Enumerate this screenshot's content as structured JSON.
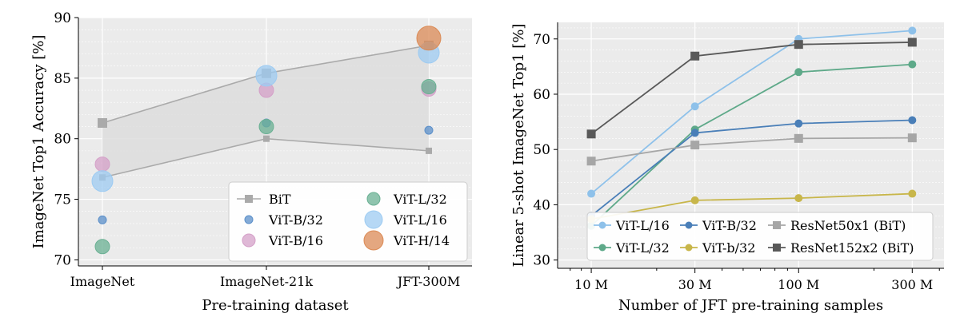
{
  "chart_data": [
    {
      "type": "scatter",
      "xlabel": "Pre-training dataset",
      "ylabel": "ImageNet Top1 Accuracy [%]",
      "categories": [
        "ImageNet",
        "ImageNet-21k",
        "JFT-300M"
      ],
      "ylim": [
        69.5,
        90
      ],
      "yticks": [
        70,
        75,
        80,
        85,
        90
      ],
      "grid": true,
      "legend_placement": "bottom-right",
      "bit_band": {
        "name": "BiT",
        "upper": [
          81.3,
          85.4,
          87.7
        ],
        "lower": [
          76.8,
          80.0,
          79.0
        ],
        "color": "#aaaaaa"
      },
      "series": [
        {
          "name": "ViT-B/32",
          "values": [
            73.3,
            81.3,
            80.7
          ],
          "color": "#5b8fc9",
          "size": "small"
        },
        {
          "name": "ViT-B/16",
          "values": [
            77.9,
            84.0,
            84.1
          ],
          "color": "#d4a0c8",
          "size": "medium"
        },
        {
          "name": "ViT-L/32",
          "values": [
            71.1,
            81.0,
            84.3
          ],
          "color": "#6ab093",
          "size": "medium"
        },
        {
          "name": "ViT-L/16",
          "values": [
            76.5,
            85.2,
            87.1
          ],
          "color": "#9dcbf2",
          "size": "large"
        },
        {
          "name": "ViT-H/14",
          "values": [
            null,
            null,
            88.3
          ],
          "color": "#db8a55",
          "size": "xlarge"
        }
      ]
    },
    {
      "type": "line",
      "xlabel": "Number of JFT pre-training samples",
      "ylabel": "Linear 5-shot ImageNet Top1 [%]",
      "x": [
        10,
        30,
        90,
        300
      ],
      "xtick_labels": [
        "10 M",
        "30 M",
        "100 M",
        "300 M"
      ],
      "xscale": "log",
      "ylim": [
        28.5,
        73
      ],
      "yticks": [
        30,
        40,
        50,
        60,
        70
      ],
      "grid": true,
      "legend_placement": "bottom-right",
      "series": [
        {
          "name": "ViT-L/16",
          "values": [
            42.0,
            57.8,
            70.0,
            71.5
          ],
          "color": "#8ec1ea",
          "marker": "circle"
        },
        {
          "name": "ViT-L/32",
          "values": [
            36.2,
            53.6,
            64.0,
            65.4
          ],
          "color": "#5ea989",
          "marker": "circle"
        },
        {
          "name": "ViT-B/32",
          "values": [
            38.0,
            53.0,
            54.7,
            55.3
          ],
          "color": "#4a7fb8",
          "marker": "circle"
        },
        {
          "name": "ViT-b/32",
          "values": [
            37.4,
            40.8,
            41.2,
            42.0
          ],
          "color": "#c8b64a",
          "marker": "circle"
        },
        {
          "name": "ResNet50x1 (BiT)",
          "values": [
            47.9,
            50.8,
            52.0,
            52.1
          ],
          "color": "#a6a6a6",
          "marker": "square"
        },
        {
          "name": "ResNet152x2 (BiT)",
          "values": [
            52.8,
            66.9,
            69.0,
            69.4
          ],
          "color": "#595959",
          "marker": "square"
        }
      ]
    }
  ]
}
